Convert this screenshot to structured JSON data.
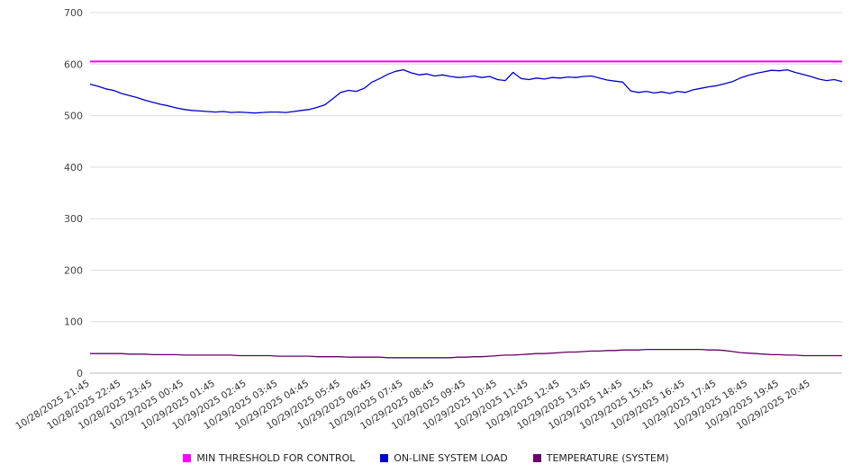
{
  "chart_data": {
    "type": "line",
    "title": "",
    "xlabel": "",
    "ylabel": "",
    "grid": "horizontal",
    "legend_position": "bottom",
    "y_axis": {
      "min": 0,
      "max": 700,
      "tick_step": 100
    },
    "sample_interval_minutes": 15,
    "x_labels": [
      "10/28/2025 21:45",
      "10/28/2025 22:45",
      "10/28/2025 23:45",
      "10/29/2025 00:45",
      "10/29/2025 01:45",
      "10/29/2025 02:45",
      "10/29/2025 03:45",
      "10/29/2025 04:45",
      "10/29/2025 05:45",
      "10/29/2025 06:45",
      "10/29/2025 07:45",
      "10/29/2025 08:45",
      "10/29/2025 09:45",
      "10/29/2025 10:45",
      "10/29/2025 11:45",
      "10/29/2025 12:45",
      "10/29/2025 13:45",
      "10/29/2025 14:45",
      "10/29/2025 15:45",
      "10/29/2025 16:45",
      "10/29/2025 17:45",
      "10/29/2025 18:45",
      "10/29/2025 19:45",
      "10/29/2025 20:45"
    ],
    "series": [
      {
        "name": "MIN THRESHOLD FOR CONTROL",
        "color": "#ff00ff",
        "type": "constant",
        "value": 605
      },
      {
        "name": "ON-LINE SYSTEM LOAD",
        "color": "#0000cc",
        "type": "line",
        "values": [
          561,
          557,
          552,
          549,
          543,
          539,
          535,
          530,
          526,
          522,
          519,
          515,
          512,
          510,
          509,
          508,
          507,
          508,
          506,
          507,
          506,
          505,
          506,
          507,
          507,
          506,
          508,
          510,
          512,
          516,
          521,
          533,
          545,
          549,
          547,
          553,
          565,
          572,
          580,
          586,
          589,
          583,
          579,
          581,
          577,
          579,
          576,
          574,
          575,
          577,
          574,
          576,
          570,
          568,
          584,
          572,
          570,
          573,
          571,
          574,
          573,
          575,
          574,
          576,
          577,
          573,
          569,
          567,
          565,
          548,
          545,
          547,
          544,
          546,
          543,
          547,
          545,
          550,
          553,
          556,
          558,
          562,
          566,
          573,
          578,
          582,
          585,
          588,
          587,
          589,
          584,
          580,
          576,
          571,
          568,
          570,
          566
        ]
      },
      {
        "name": "TEMPERATURE (SYSTEM)",
        "color": "#660066",
        "type": "line",
        "values": [
          38,
          38,
          38,
          38,
          38,
          37,
          37,
          37,
          36,
          36,
          36,
          36,
          35,
          35,
          35,
          35,
          35,
          35,
          35,
          34,
          34,
          34,
          34,
          34,
          33,
          33,
          33,
          33,
          33,
          32,
          32,
          32,
          32,
          31,
          31,
          31,
          31,
          31,
          30,
          30,
          30,
          30,
          30,
          30,
          30,
          30,
          30,
          31,
          31,
          32,
          32,
          33,
          34,
          35,
          35,
          36,
          37,
          38,
          38,
          39,
          40,
          41,
          41,
          42,
          43,
          43,
          44,
          44,
          45,
          45,
          45,
          46,
          46,
          46,
          46,
          46,
          46,
          46,
          46,
          45,
          45,
          44,
          42,
          40,
          39,
          38,
          37,
          36,
          36,
          35,
          35,
          34,
          34,
          34,
          34,
          34,
          34
        ]
      }
    ]
  }
}
